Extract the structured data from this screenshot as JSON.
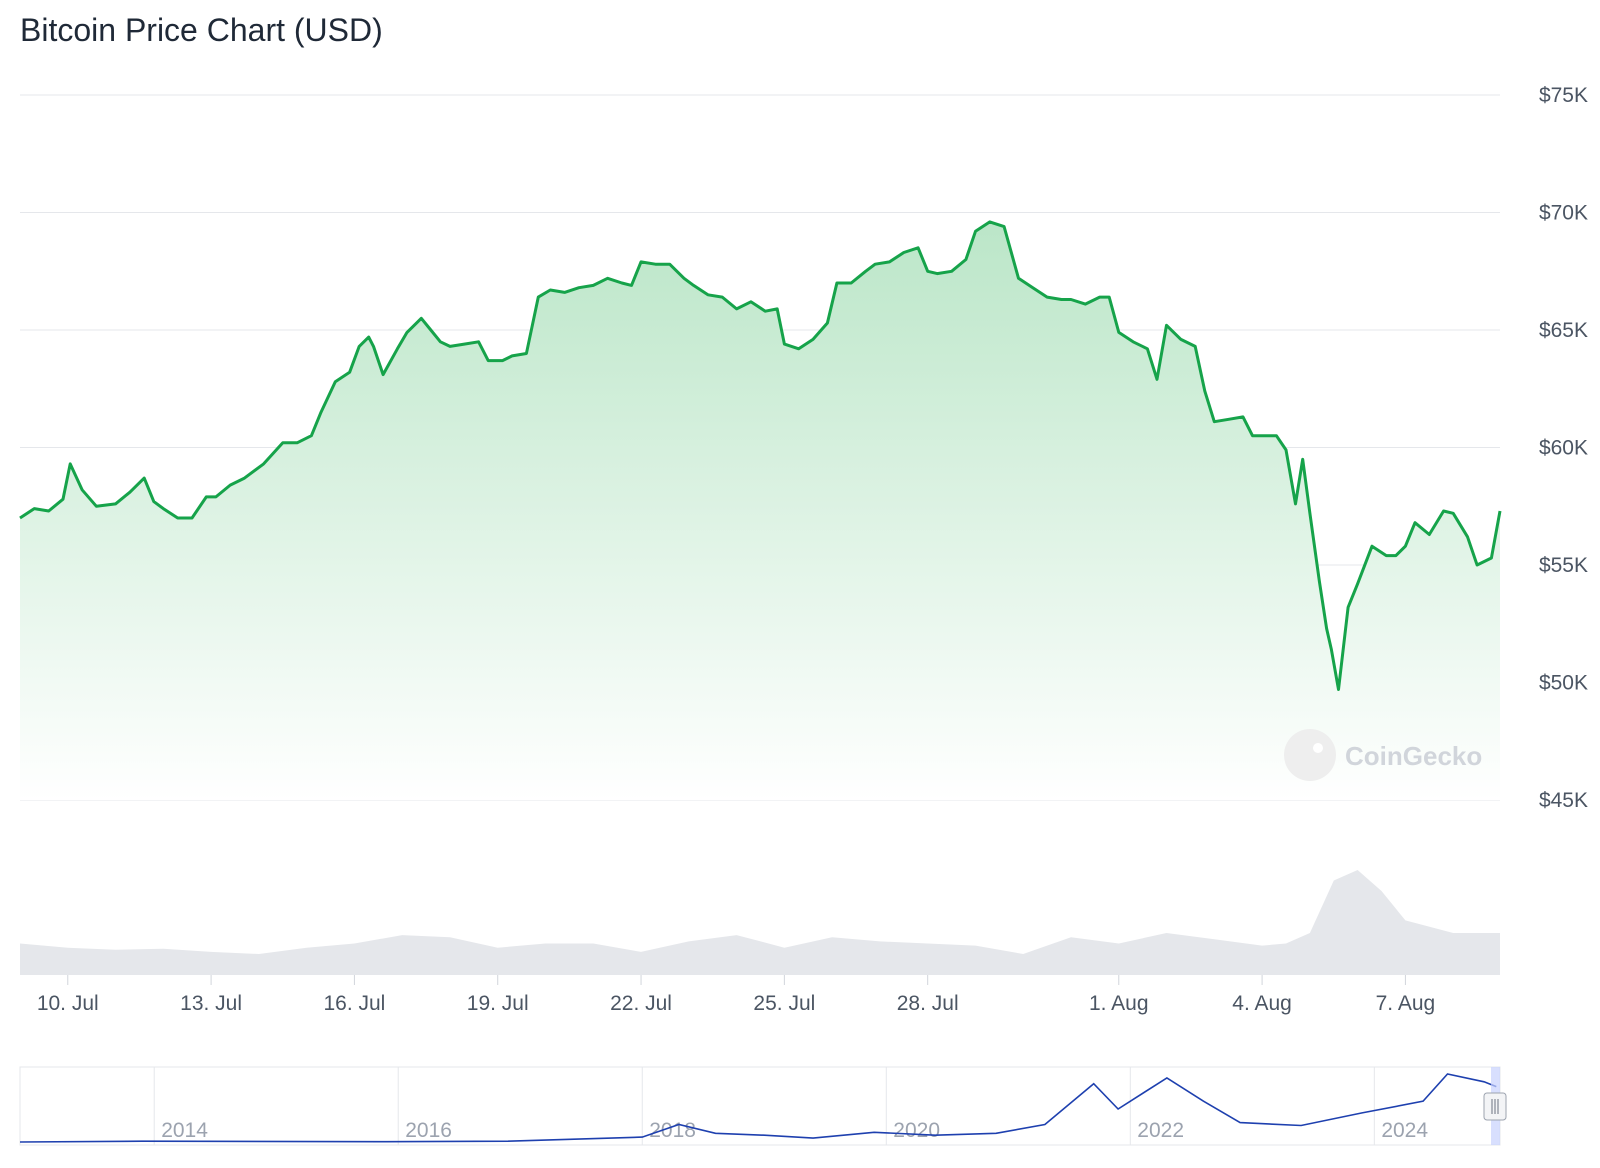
{
  "title": "Bitcoin Price Chart (USD)",
  "watermark": "CoinGecko",
  "colors": {
    "price_line": "#16a34a",
    "area_top": "#bbe6c8",
    "grid": "#e5e7eb",
    "volume": "#e5e7eb",
    "navigator_line": "#1e40af",
    "navigator_handle": "#c7d2fe"
  },
  "chart_data": {
    "type": "area",
    "y_axis": {
      "ylim": [
        45000,
        75000
      ],
      "ticks": [
        75000,
        70000,
        65000,
        60000,
        55000,
        50000,
        45000
      ],
      "tick_labels": [
        "$75K",
        "$70K",
        "$65K",
        "$60K",
        "$55K",
        "$50K",
        "$45K"
      ],
      "position": "right"
    },
    "x_axis": {
      "ticks": [
        "10. Jul",
        "13. Jul",
        "16. Jul",
        "19. Jul",
        "22. Jul",
        "25. Jul",
        "28. Jul",
        "1. Aug",
        "4. Aug",
        "7. Aug"
      ]
    },
    "x_range_days": [
      9,
      39.98
    ],
    "series": [
      {
        "type": "line",
        "points": [
          [
            9.0,
            57000
          ],
          [
            9.3,
            57400
          ],
          [
            9.6,
            57300
          ],
          [
            9.9,
            57800
          ],
          [
            10.05,
            59300
          ],
          [
            10.3,
            58200
          ],
          [
            10.6,
            57500
          ],
          [
            11.0,
            57600
          ],
          [
            11.3,
            58100
          ],
          [
            11.6,
            58700
          ],
          [
            11.8,
            57700
          ],
          [
            12.0,
            57400
          ],
          [
            12.3,
            57000
          ],
          [
            12.6,
            57000
          ],
          [
            12.9,
            57900
          ],
          [
            13.1,
            57900
          ],
          [
            13.4,
            58400
          ],
          [
            13.7,
            58700
          ],
          [
            14.1,
            59300
          ],
          [
            14.5,
            60200
          ],
          [
            14.8,
            60200
          ],
          [
            15.1,
            60500
          ],
          [
            15.3,
            61500
          ],
          [
            15.6,
            62800
          ],
          [
            15.9,
            63200
          ],
          [
            16.1,
            64300
          ],
          [
            16.3,
            64700
          ],
          [
            16.4,
            64300
          ],
          [
            16.6,
            63100
          ],
          [
            16.9,
            64200
          ],
          [
            17.1,
            64900
          ],
          [
            17.4,
            65500
          ],
          [
            17.6,
            65000
          ],
          [
            17.8,
            64500
          ],
          [
            18.0,
            64300
          ],
          [
            18.3,
            64400
          ],
          [
            18.6,
            64500
          ],
          [
            18.8,
            63700
          ],
          [
            19.1,
            63700
          ],
          [
            19.3,
            63900
          ],
          [
            19.6,
            64000
          ],
          [
            19.85,
            66400
          ],
          [
            20.1,
            66700
          ],
          [
            20.4,
            66600
          ],
          [
            20.7,
            66800
          ],
          [
            21.0,
            66900
          ],
          [
            21.3,
            67200
          ],
          [
            21.6,
            67000
          ],
          [
            21.8,
            66900
          ],
          [
            22.0,
            67900
          ],
          [
            22.3,
            67800
          ],
          [
            22.6,
            67800
          ],
          [
            22.9,
            67200
          ],
          [
            23.1,
            66900
          ],
          [
            23.4,
            66500
          ],
          [
            23.7,
            66400
          ],
          [
            24.0,
            65900
          ],
          [
            24.3,
            66200
          ],
          [
            24.6,
            65800
          ],
          [
            24.85,
            65900
          ],
          [
            25.0,
            64400
          ],
          [
            25.3,
            64200
          ],
          [
            25.6,
            64600
          ],
          [
            25.9,
            65300
          ],
          [
            26.1,
            67000
          ],
          [
            26.4,
            67000
          ],
          [
            26.7,
            67500
          ],
          [
            26.9,
            67800
          ],
          [
            27.2,
            67900
          ],
          [
            27.5,
            68300
          ],
          [
            27.8,
            68500
          ],
          [
            28.0,
            67500
          ],
          [
            28.2,
            67400
          ],
          [
            28.5,
            67500
          ],
          [
            28.8,
            68000
          ],
          [
            29.0,
            69200
          ],
          [
            29.3,
            69600
          ],
          [
            29.6,
            69400
          ],
          [
            29.9,
            67200
          ],
          [
            30.2,
            66800
          ],
          [
            30.5,
            66400
          ],
          [
            30.8,
            66300
          ],
          [
            31.0,
            66300
          ],
          [
            31.3,
            66100
          ],
          [
            31.6,
            66400
          ],
          [
            31.8,
            66400
          ],
          [
            32.0,
            64900
          ],
          [
            32.3,
            64500
          ],
          [
            32.6,
            64200
          ],
          [
            32.8,
            62900
          ],
          [
            33.0,
            65200
          ],
          [
            33.3,
            64600
          ],
          [
            33.6,
            64300
          ],
          [
            33.8,
            62400
          ],
          [
            34.0,
            61100
          ],
          [
            34.3,
            61200
          ],
          [
            34.6,
            61300
          ],
          [
            34.8,
            60500
          ],
          [
            35.0,
            60500
          ],
          [
            35.3,
            60500
          ],
          [
            35.5,
            59900
          ],
          [
            35.7,
            57600
          ],
          [
            35.85,
            59500
          ],
          [
            36.0,
            57200
          ],
          [
            36.2,
            54300
          ],
          [
            36.35,
            52300
          ],
          [
            36.45,
            51400
          ],
          [
            36.6,
            49700
          ],
          [
            36.8,
            53200
          ],
          [
            37.0,
            54200
          ],
          [
            37.3,
            55800
          ],
          [
            37.6,
            55400
          ],
          [
            37.8,
            55400
          ],
          [
            38.0,
            55800
          ],
          [
            38.2,
            56800
          ],
          [
            38.5,
            56300
          ],
          [
            38.8,
            57300
          ],
          [
            39.0,
            57200
          ],
          [
            39.3,
            56200
          ],
          [
            39.5,
            55000
          ],
          [
            39.8,
            55300
          ],
          [
            39.98,
            57300
          ]
        ]
      },
      {
        "name": "volume",
        "type": "area",
        "points": [
          [
            9.0,
            0.3
          ],
          [
            10.0,
            0.26
          ],
          [
            11.0,
            0.24
          ],
          [
            12.0,
            0.25
          ],
          [
            13.0,
            0.22
          ],
          [
            14.0,
            0.2
          ],
          [
            15.0,
            0.26
          ],
          [
            16.0,
            0.3
          ],
          [
            17.0,
            0.38
          ],
          [
            18.0,
            0.36
          ],
          [
            19.0,
            0.26
          ],
          [
            20.0,
            0.3
          ],
          [
            21.0,
            0.3
          ],
          [
            22.0,
            0.22
          ],
          [
            23.0,
            0.32
          ],
          [
            24.0,
            0.38
          ],
          [
            25.0,
            0.26
          ],
          [
            26.0,
            0.36
          ],
          [
            27.0,
            0.32
          ],
          [
            28.0,
            0.3
          ],
          [
            29.0,
            0.28
          ],
          [
            30.0,
            0.2
          ],
          [
            31.0,
            0.36
          ],
          [
            32.0,
            0.3
          ],
          [
            33.0,
            0.4
          ],
          [
            34.0,
            0.34
          ],
          [
            35.0,
            0.28
          ],
          [
            35.5,
            0.3
          ],
          [
            36.0,
            0.4
          ],
          [
            36.5,
            0.9
          ],
          [
            37.0,
            1.0
          ],
          [
            37.5,
            0.8
          ],
          [
            38.0,
            0.52
          ],
          [
            39.0,
            0.4
          ],
          [
            39.98,
            0.4
          ]
        ]
      }
    ]
  },
  "navigator": {
    "ticks": [
      "2014",
      "2016",
      "2018",
      "2020",
      "2022",
      "2024"
    ],
    "points": [
      [
        2012.5,
        0
      ],
      [
        2013.5,
        0.8
      ],
      [
        2014.0,
        0.7
      ],
      [
        2015.5,
        0.3
      ],
      [
        2016.5,
        0.8
      ],
      [
        2017.6,
        5
      ],
      [
        2017.9,
        18
      ],
      [
        2018.2,
        9
      ],
      [
        2018.6,
        7
      ],
      [
        2019.0,
        4
      ],
      [
        2019.5,
        10
      ],
      [
        2020.0,
        7
      ],
      [
        2020.5,
        9
      ],
      [
        2020.9,
        18
      ],
      [
        2021.3,
        60
      ],
      [
        2021.5,
        34
      ],
      [
        2021.9,
        66
      ],
      [
        2022.2,
        42
      ],
      [
        2022.5,
        20
      ],
      [
        2023.0,
        17
      ],
      [
        2023.5,
        30
      ],
      [
        2024.0,
        42
      ],
      [
        2024.2,
        70
      ],
      [
        2024.5,
        62
      ],
      [
        2024.6,
        57
      ]
    ]
  }
}
